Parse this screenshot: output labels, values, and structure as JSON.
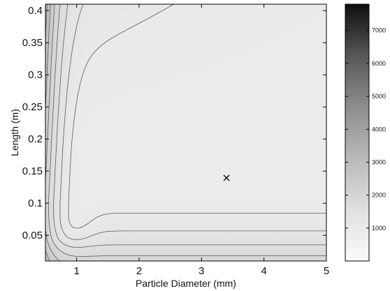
{
  "chart_data": {
    "type": "heatmap",
    "title": "",
    "xlabel": "Particle Diameter (mm)",
    "ylabel": "Length (m)",
    "xlim": [
      0.5,
      5
    ],
    "ylim": [
      0.01,
      0.41
    ],
    "xticks": [
      1,
      2,
      3,
      4,
      5
    ],
    "xtick_labels": [
      "1",
      "2",
      "3",
      "4",
      "5"
    ],
    "yticks": [
      0.05,
      0.1,
      0.15,
      0.2,
      0.25,
      0.3,
      0.35,
      0.4
    ],
    "ytick_labels": [
      "0.05",
      "0.1",
      "0.15",
      "0.2",
      "0.25",
      "0.3",
      "0.35",
      "0.4"
    ],
    "colorbar": {
      "range": [
        0,
        7800
      ],
      "ticks": [
        1000,
        2000,
        3000,
        4000,
        5000,
        6000,
        7000
      ],
      "tick_labels": [
        "1000",
        "2000",
        "3000",
        "4000",
        "5000",
        "6000",
        "7000"
      ],
      "colormap": "gray (white = low, black = high)"
    },
    "minimum_marker": {
      "symbol": "×",
      "x": 3.4,
      "y": 0.14
    },
    "contour_line_color": "#5a5a5a",
    "grid": false
  }
}
